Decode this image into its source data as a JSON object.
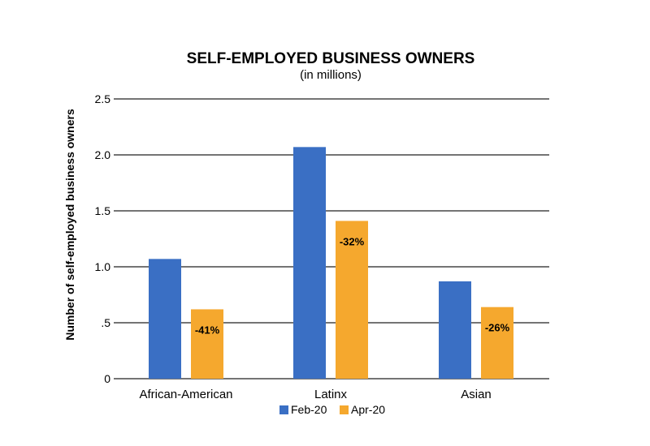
{
  "chart_data": {
    "type": "bar",
    "title": "SELF-EMPLOYED BUSINESS OWNERS",
    "subtitle": "(in millions)",
    "xlabel": "",
    "ylabel": "Number of self-employed business owners",
    "categories": [
      "African-American",
      "Latinx",
      "Asian"
    ],
    "series": [
      {
        "name": "Feb-20",
        "color": "#3a6fc4",
        "values": [
          1.07,
          2.07,
          0.87
        ]
      },
      {
        "name": "Apr-20",
        "color": "#f5a82e",
        "values": [
          0.62,
          1.41,
          0.64
        ]
      }
    ],
    "data_labels": [
      "-41%",
      "-32%",
      "-26%"
    ],
    "ylim": [
      0,
      2.5
    ],
    "yticks": [
      {
        "value": 0,
        "label": "0"
      },
      {
        "value": 0.5,
        "label": ".5"
      },
      {
        "value": 1.0,
        "label": "1.0"
      },
      {
        "value": 1.5,
        "label": "1.5"
      },
      {
        "value": 2.0,
        "label": "2.0"
      },
      {
        "value": 2.5,
        "label": "2.5"
      }
    ],
    "grid": true,
    "legend": "bottom-center"
  }
}
